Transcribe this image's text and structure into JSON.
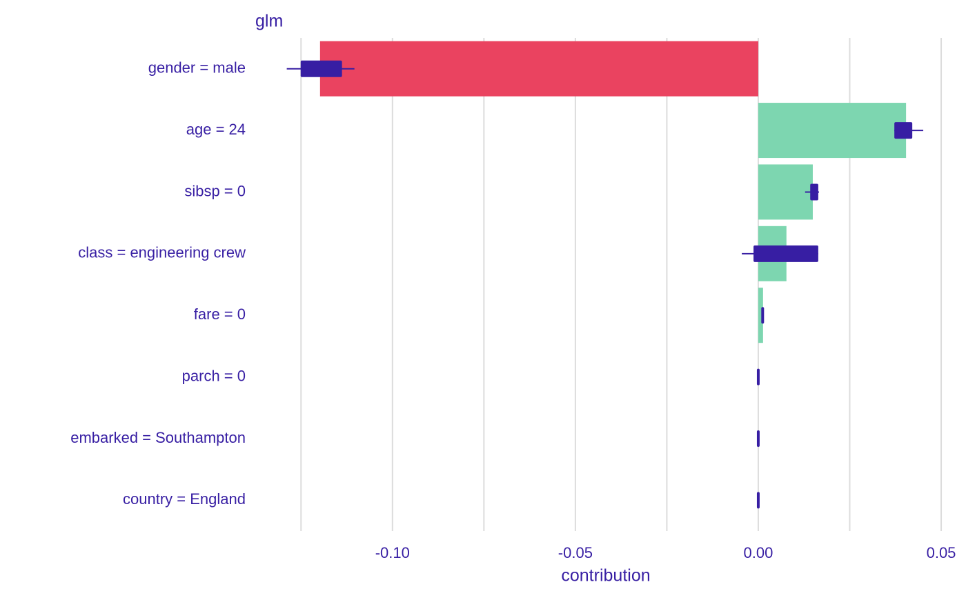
{
  "chart_data": {
    "type": "bar-box",
    "title": "glm",
    "x_label": "contribution",
    "categories": [
      "gender = male",
      "age = 24",
      "sibsp = 0",
      "class = engineering crew",
      "fare = 0",
      "parch = 0",
      "embarked = Southampton",
      "country = England"
    ],
    "values": [
      -0.1198,
      0.0404,
      0.0149,
      0.0077,
      0.0013,
      0,
      0,
      0
    ],
    "boxes": [
      {
        "min": -0.1289,
        "q1": -0.1251,
        "q3": -0.1138,
        "max": -0.1104
      },
      {
        "min": 0.0372,
        "q1": 0.0372,
        "q3": 0.0421,
        "max": 0.0451
      },
      {
        "min": 0.0128,
        "q1": 0.0142,
        "q3": 0.0164,
        "max": 0.0166
      },
      {
        "min": -0.0045,
        "q1": -0.0013,
        "q3": 0.0164,
        "max": 0.0164
      },
      {
        "min": 0.0009,
        "q1": 0.0009,
        "q3": 0.0015,
        "max": 0.0015
      },
      {
        "min": -0.0002,
        "q1": -0.0002,
        "q3": 0.0002,
        "max": 0.0002
      },
      {
        "min": -0.0002,
        "q1": -0.0002,
        "q3": 0.0002,
        "max": 0.0002
      },
      {
        "min": -0.0002,
        "q1": -0.0002,
        "q3": 0.0002,
        "max": 0.0002
      }
    ],
    "positive_color": "#7dd6b0",
    "negative_color": "#ea4360",
    "box_color": "#371ea3",
    "xlim": [
      -0.1375,
      0.0549
    ],
    "xticks": [
      {
        "value": -0.1,
        "label": "-0.10"
      },
      {
        "value": -0.05,
        "label": "-0.05"
      },
      {
        "value": 0,
        "label": "0.00"
      },
      {
        "value": 0.05,
        "label": "0.05"
      }
    ],
    "minor_xticks": [
      -0.125,
      -0.075,
      -0.025,
      0.025
    ],
    "grid": true
  }
}
